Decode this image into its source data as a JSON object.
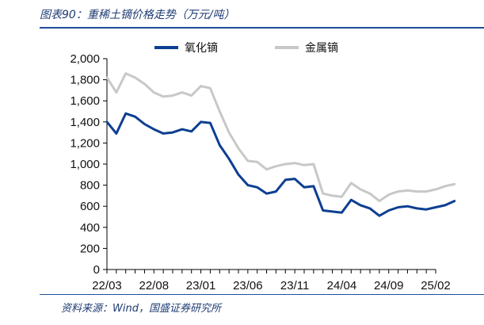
{
  "header": {
    "title": "图表90：重稀土镝价格走势（万元/吨）"
  },
  "footer": {
    "source": "资料来源：Wind，国盛证券研究所"
  },
  "chart_data": {
    "type": "line",
    "title": "图表90：重稀土镝价格走势（万元/吨）",
    "xlabel": "",
    "ylabel": "",
    "ylim": [
      0,
      2000
    ],
    "yticks": [
      0,
      200,
      400,
      600,
      800,
      1000,
      1200,
      1400,
      1600,
      1800,
      2000
    ],
    "ytick_labels": [
      "0",
      "200",
      "400",
      "600",
      "800",
      "1,000",
      "1,200",
      "1,400",
      "1,600",
      "1,800",
      "2,000"
    ],
    "xticks": [
      "22/03",
      "22/08",
      "23/01",
      "23/06",
      "23/11",
      "24/04",
      "24/09",
      "25/02"
    ],
    "grid": false,
    "legend_position": "top-center",
    "colors": {
      "氧化镝": "#0d3f91",
      "金属镝": "#c8c8c8",
      "axis": "#000000",
      "title": "#1f3b73",
      "rule": "#1f4e9a"
    },
    "series": [
      {
        "name": "氧化镝",
        "x": [
          "22/03",
          "22/04",
          "22/05",
          "22/06",
          "22/07",
          "22/08",
          "22/09",
          "22/10",
          "22/11",
          "22/12",
          "23/01",
          "23/02",
          "23/03",
          "23/04",
          "23/05",
          "23/06",
          "23/07",
          "23/08",
          "23/09",
          "23/10",
          "23/11",
          "23/12",
          "24/01",
          "24/02",
          "24/03",
          "24/04",
          "24/05",
          "24/06",
          "24/07",
          "24/08",
          "24/09",
          "24/10",
          "24/11",
          "24/12",
          "25/01",
          "25/02",
          "25/03",
          "25/04"
        ],
        "values": [
          1400,
          1290,
          1480,
          1450,
          1380,
          1330,
          1290,
          1300,
          1330,
          1310,
          1400,
          1390,
          1180,
          1050,
          900,
          800,
          780,
          720,
          740,
          850,
          860,
          780,
          790,
          560,
          550,
          540,
          660,
          610,
          580,
          510,
          560,
          590,
          600,
          580,
          570,
          590,
          610,
          650
        ]
      },
      {
        "name": "金属镝",
        "x": [
          "22/03",
          "22/04",
          "22/05",
          "22/06",
          "22/07",
          "22/08",
          "22/09",
          "22/10",
          "22/11",
          "22/12",
          "23/01",
          "23/02",
          "23/03",
          "23/04",
          "23/05",
          "23/06",
          "23/07",
          "23/08",
          "23/09",
          "23/10",
          "23/11",
          "23/12",
          "24/01",
          "24/02",
          "24/03",
          "24/04",
          "24/05",
          "24/06",
          "24/07",
          "24/08",
          "24/09",
          "24/10",
          "24/11",
          "24/12",
          "25/01",
          "25/02",
          "25/03",
          "25/04"
        ],
        "values": [
          1820,
          1680,
          1860,
          1820,
          1760,
          1680,
          1640,
          1650,
          1680,
          1650,
          1740,
          1720,
          1500,
          1300,
          1150,
          1030,
          1020,
          950,
          980,
          1000,
          1010,
          990,
          1000,
          720,
          700,
          690,
          820,
          760,
          720,
          650,
          710,
          740,
          750,
          740,
          740,
          760,
          790,
          810
        ]
      }
    ]
  }
}
